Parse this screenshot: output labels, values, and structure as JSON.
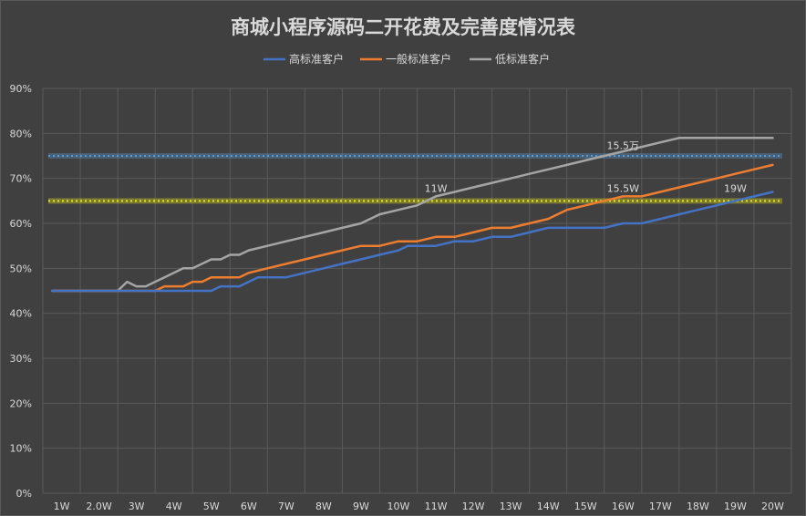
{
  "chart_data": {
    "type": "line",
    "title": "商城小程序源码二开花费及完善度情况表",
    "xlabel": "",
    "ylabel": "",
    "categories": [
      "1W",
      "2.0W",
      "3W",
      "4W",
      "5W",
      "6W",
      "7W",
      "8W",
      "9W",
      "10W",
      "11W",
      "12W",
      "13W",
      "14W",
      "15W",
      "16W",
      "17W",
      "18W",
      "19W",
      "20W"
    ],
    "x_positions": [
      1,
      2,
      3,
      4,
      5,
      6,
      7,
      8,
      9,
      10,
      11,
      12,
      13,
      14,
      15,
      16,
      17,
      18,
      19,
      20
    ],
    "xlim": [
      0.5,
      20.5
    ],
    "ylim": [
      0,
      90
    ],
    "yticks": [
      0,
      10,
      20,
      30,
      40,
      50,
      60,
      70,
      80,
      90
    ],
    "ytick_labels": [
      "0%",
      "10%",
      "20%",
      "30%",
      "40%",
      "50%",
      "60%",
      "70%",
      "80%",
      "90%"
    ],
    "grid": true,
    "legend_position": "top-center",
    "series": [
      {
        "name": "高标准客户",
        "color": "#4472c4",
        "x": [
          0.75,
          1.0,
          1.25,
          1.5,
          1.75,
          2.0,
          2.25,
          2.5,
          2.75,
          3.0,
          3.25,
          3.5,
          3.75,
          4.0,
          4.25,
          4.5,
          4.75,
          5.0,
          5.25,
          5.5,
          5.75,
          6.0,
          6.25,
          6.5,
          6.75,
          7.0,
          7.5,
          8.0,
          8.5,
          9.0,
          9.5,
          10.0,
          10.25,
          10.5,
          10.75,
          11.0,
          11.5,
          12.0,
          12.5,
          13.0,
          13.5,
          14.0,
          14.5,
          15.0,
          15.5,
          16.0,
          16.5,
          17.0,
          17.5,
          18.0,
          18.5,
          19.0,
          19.5,
          20.0
        ],
        "y": [
          45,
          45,
          45,
          45,
          45,
          45,
          45,
          45,
          45,
          45,
          45,
          45,
          45,
          45,
          45,
          45,
          45,
          45,
          46,
          46,
          46,
          47,
          48,
          48,
          48,
          48,
          49,
          50,
          51,
          52,
          53,
          54,
          55,
          55,
          55,
          55,
          56,
          56,
          57,
          57,
          58,
          59,
          59,
          59,
          59,
          60,
          60,
          61,
          62,
          63,
          64,
          65,
          66,
          67
        ]
      },
      {
        "name": "一般标准客户",
        "color": "#ed7d31",
        "x": [
          0.75,
          1.0,
          1.5,
          2.0,
          2.5,
          3.0,
          3.25,
          3.5,
          3.75,
          4.0,
          4.25,
          4.5,
          4.75,
          5.0,
          5.25,
          5.5,
          5.75,
          6.0,
          6.5,
          7.0,
          7.5,
          8.0,
          8.5,
          9.0,
          9.5,
          10.0,
          10.5,
          11.0,
          11.5,
          12.0,
          12.5,
          13.0,
          13.5,
          14.0,
          14.5,
          15.0,
          15.5,
          16.0,
          16.5,
          17.0,
          17.5,
          18.0,
          18.5,
          19.0,
          19.5,
          20.0
        ],
        "y": [
          45,
          45,
          45,
          45,
          45,
          45,
          45,
          45,
          46,
          46,
          46,
          47,
          47,
          48,
          48,
          48,
          48,
          49,
          50,
          51,
          52,
          53,
          54,
          55,
          55,
          56,
          56,
          57,
          57,
          58,
          59,
          59,
          60,
          61,
          63,
          64,
          65,
          66,
          66,
          67,
          68,
          69,
          70,
          71,
          72,
          73
        ]
      },
      {
        "name": "低标准客户",
        "color": "#a5a5a5",
        "x": [
          0.75,
          1.0,
          1.5,
          2.0,
          2.25,
          2.5,
          2.75,
          3.0,
          3.25,
          3.5,
          3.75,
          4.0,
          4.25,
          4.5,
          4.75,
          5.0,
          5.25,
          5.5,
          5.75,
          6.0,
          6.5,
          7.0,
          7.5,
          8.0,
          8.5,
          9.0,
          9.5,
          10.0,
          10.5,
          11.0,
          11.5,
          12.0,
          12.5,
          13.0,
          13.5,
          14.0,
          14.5,
          15.0,
          15.5,
          16.0,
          16.5,
          17.0,
          17.5,
          18.0,
          18.5,
          19.0,
          19.5,
          20.0
        ],
        "y": [
          45,
          45,
          45,
          45,
          45,
          45,
          47,
          46,
          46,
          47,
          48,
          49,
          50,
          50,
          51,
          52,
          52,
          53,
          53,
          54,
          55,
          56,
          57,
          58,
          59,
          60,
          62,
          63,
          64,
          66,
          67,
          68,
          69,
          70,
          71,
          72,
          73,
          74,
          75,
          76,
          77,
          78,
          79,
          79,
          79,
          79,
          79,
          79
        ]
      }
    ],
    "reference_lines": [
      {
        "name": "reference-line-75",
        "y": 75,
        "color": "#5b9bd5",
        "glow": "rgba(91,155,213,0.35)"
      },
      {
        "name": "reference-line-65",
        "y": 65,
        "color": "#e8e81a",
        "glow": "rgba(232,232,26,0.35)"
      }
    ],
    "annotations": [
      {
        "text": "15.5万",
        "x": 16,
        "y": 76.5
      },
      {
        "text": "11W",
        "x": 11,
        "y": 67
      },
      {
        "text": "15.5W",
        "x": 16,
        "y": 67
      },
      {
        "text": "19W",
        "x": 19,
        "y": 67
      }
    ]
  }
}
